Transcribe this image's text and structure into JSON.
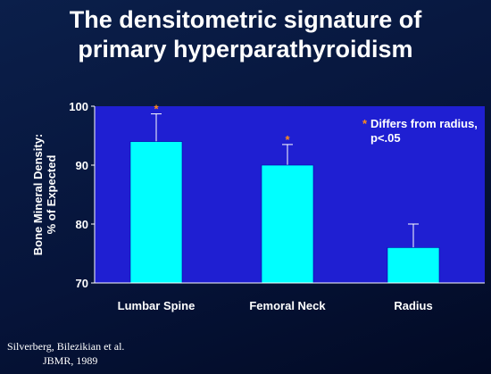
{
  "title_line1": "The densitometric signature of",
  "title_line2": "primary hyperparathyroidism",
  "citation_line1": "Silverberg, Bilezikian et al.",
  "citation_line2": "JBMR, 1989",
  "colors": {
    "plot_background": "#1f1fd2",
    "bar": "#00ffff",
    "asterisk": "#ff8c1a",
    "text": "#ffffff"
  },
  "chart_data": {
    "type": "bar",
    "categories": [
      "Lumbar Spine",
      "Femoral Neck",
      "Radius"
    ],
    "values": [
      94,
      90,
      76
    ],
    "error_upper": [
      98.7,
      93.5,
      80
    ],
    "significant": [
      true,
      true,
      false
    ],
    "significance_marker": "*",
    "ylabel_line1": "Bone Mineral Density:",
    "ylabel_line2": "% of Expected",
    "ylim": [
      70,
      100
    ],
    "yticks": [
      70,
      80,
      90,
      100
    ],
    "ytick_labels": [
      "70",
      "80",
      "90",
      "100"
    ],
    "annotation_marker": "*",
    "annotation_line1": "Differs from radius,",
    "annotation_line2": "p<.05",
    "grid": false
  }
}
